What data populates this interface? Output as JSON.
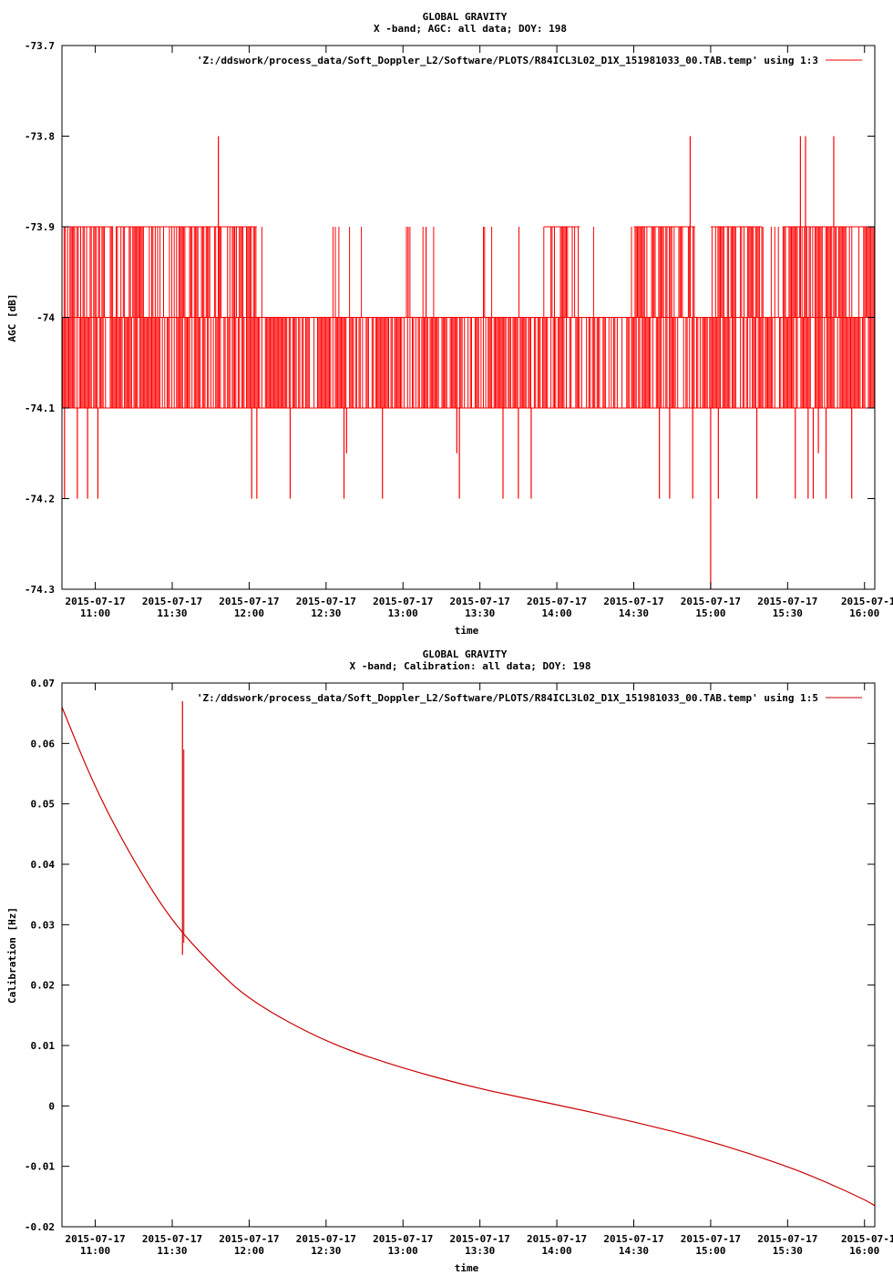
{
  "chart_data": [
    {
      "type": "line",
      "title": "GLOBAL GRAVITY",
      "subtitle": "X -band; AGC: all data; DOY: 198",
      "xlabel": "time",
      "ylabel": "AGC [dB]",
      "xlim": [
        "2015-07-17 10:47",
        "2015-07-17 16:04"
      ],
      "ylim": [
        -74.3,
        -73.7
      ],
      "yticks": [
        "-73.7",
        "-73.8",
        "-73.9",
        "-74",
        "-74.1",
        "-74.2",
        "-74.3"
      ],
      "ytick_values": [
        -73.7,
        -73.8,
        -73.9,
        -74.0,
        -74.1,
        -74.2,
        -74.3
      ],
      "xtick_dates": [
        "2015-07-17",
        "2015-07-17",
        "2015-07-17",
        "2015-07-17",
        "2015-07-17",
        "2015-07-17",
        "2015-07-17",
        "2015-07-17",
        "2015-07-17",
        "2015-07-17",
        "2015-07-17"
      ],
      "xtick_times": [
        "11:00",
        "11:30",
        "12:00",
        "12:30",
        "13:00",
        "13:30",
        "14:00",
        "14:30",
        "15:00",
        "15:30",
        "16:00"
      ],
      "xtick_last_date_clipped": "2015-07-1",
      "legend": "'Z:/ddswork/process_data/Soft_Doppler_L2/Software/PLOTS/R84ICL3L02_D1X_151981033_00.TAB.temp' using 1:3",
      "legend_position": "top-right",
      "grid": false,
      "series_color": "#ff0000",
      "baseline": [
        -74.0,
        -74.1
      ],
      "spikes": [
        {
          "time": "10:48",
          "value": -74.2
        },
        {
          "time": "10:53",
          "value": -74.2
        },
        {
          "time": "10:57",
          "value": -74.2
        },
        {
          "time": "11:01",
          "value": -74.2
        },
        {
          "time": "11:48",
          "value": -73.8
        },
        {
          "time": "11:49",
          "value": -73.9
        },
        {
          "time": "11:55",
          "value": -73.9
        },
        {
          "time": "12:01",
          "value": -74.2
        },
        {
          "time": "12:03",
          "value": -74.2
        },
        {
          "time": "12:16",
          "value": -74.2
        },
        {
          "time": "12:37",
          "value": -74.2
        },
        {
          "time": "12:38",
          "value": -74.15
        },
        {
          "time": "12:52",
          "value": -74.2
        },
        {
          "time": "13:02",
          "value": -73.9
        },
        {
          "time": "13:09",
          "value": -73.9
        },
        {
          "time": "13:21",
          "value": -74.15
        },
        {
          "time": "13:22",
          "value": -74.2
        },
        {
          "time": "13:39",
          "value": -74.2
        },
        {
          "time": "13:45",
          "value": -74.2
        },
        {
          "time": "13:50",
          "value": -74.2
        },
        {
          "time": "14:40",
          "value": -74.2
        },
        {
          "time": "14:44",
          "value": -74.2
        },
        {
          "time": "14:52",
          "value": -73.8
        },
        {
          "time": "14:53",
          "value": -74.2
        },
        {
          "time": "15:00",
          "value": -74.3
        },
        {
          "time": "15:03",
          "value": -74.2
        },
        {
          "time": "15:18",
          "value": -74.2
        },
        {
          "time": "15:33",
          "value": -74.2
        },
        {
          "time": "15:35",
          "value": -73.8
        },
        {
          "time": "15:37",
          "value": -73.8
        },
        {
          "time": "15:38",
          "value": -74.2
        },
        {
          "time": "15:40",
          "value": -74.2
        },
        {
          "time": "15:42",
          "value": -74.15
        },
        {
          "time": "15:45",
          "value": -74.2
        },
        {
          "time": "15:48",
          "value": -73.8
        },
        {
          "time": "15:55",
          "value": -74.2
        }
      ],
      "upper_block_ranges": [
        [
          "10:47",
          "11:07"
        ],
        [
          "11:08",
          "12:03"
        ],
        [
          "13:55",
          "14:09"
        ],
        [
          "14:30",
          "14:54"
        ],
        [
          "15:00",
          "15:20"
        ],
        [
          "15:28",
          "16:04"
        ]
      ]
    },
    {
      "type": "line",
      "title": "GLOBAL GRAVITY",
      "subtitle": "X -band; Calibration: all data; DOY: 198",
      "xlabel": "time",
      "ylabel": "Calibration [Hz]",
      "xlim": [
        "2015-07-17 10:47",
        "2015-07-17 16:04"
      ],
      "ylim": [
        -0.02,
        0.07
      ],
      "yticks": [
        "0.07",
        "0.06",
        "0.05",
        "0.04",
        "0.03",
        "0.02",
        "0.01",
        "0",
        "-0.01",
        "-0.02"
      ],
      "ytick_values": [
        0.07,
        0.06,
        0.05,
        0.04,
        0.03,
        0.02,
        0.01,
        0.0,
        -0.01,
        -0.02
      ],
      "xtick_dates": [
        "2015-07-17",
        "2015-07-17",
        "2015-07-17",
        "2015-07-17",
        "2015-07-17",
        "2015-07-17",
        "2015-07-17",
        "2015-07-17",
        "2015-07-17",
        "2015-07-17",
        "2015-07-17"
      ],
      "xtick_times": [
        "11:00",
        "11:30",
        "12:00",
        "12:30",
        "13:00",
        "13:30",
        "14:00",
        "14:30",
        "15:00",
        "15:30",
        "16:00"
      ],
      "xtick_last_date_clipped": "2015-07-1",
      "legend": "'Z:/ddswork/process_data/Soft_Doppler_L2/Software/PLOTS/R84ICL3L02_D1X_151981033_00.TAB.temp' using 1:5",
      "legend_position": "top-right",
      "grid": false,
      "series_color": "#cc0000",
      "x": [
        "10:47",
        "11:00",
        "11:15",
        "11:30",
        "11:45",
        "12:00",
        "12:30",
        "13:00",
        "13:30",
        "14:00",
        "14:30",
        "15:00",
        "15:30",
        "15:45",
        "16:00",
        "16:04"
      ],
      "y": [
        0.066,
        0.0525,
        0.0405,
        0.0305,
        0.0235,
        0.0175,
        0.0105,
        0.0062,
        0.0028,
        0.0002,
        -0.0026,
        -0.0058,
        -0.01,
        -0.0126,
        -0.0155,
        -0.0165
      ],
      "spike": {
        "time": "11:34",
        "ymin": 0.025,
        "ymax": 0.067
      }
    }
  ]
}
